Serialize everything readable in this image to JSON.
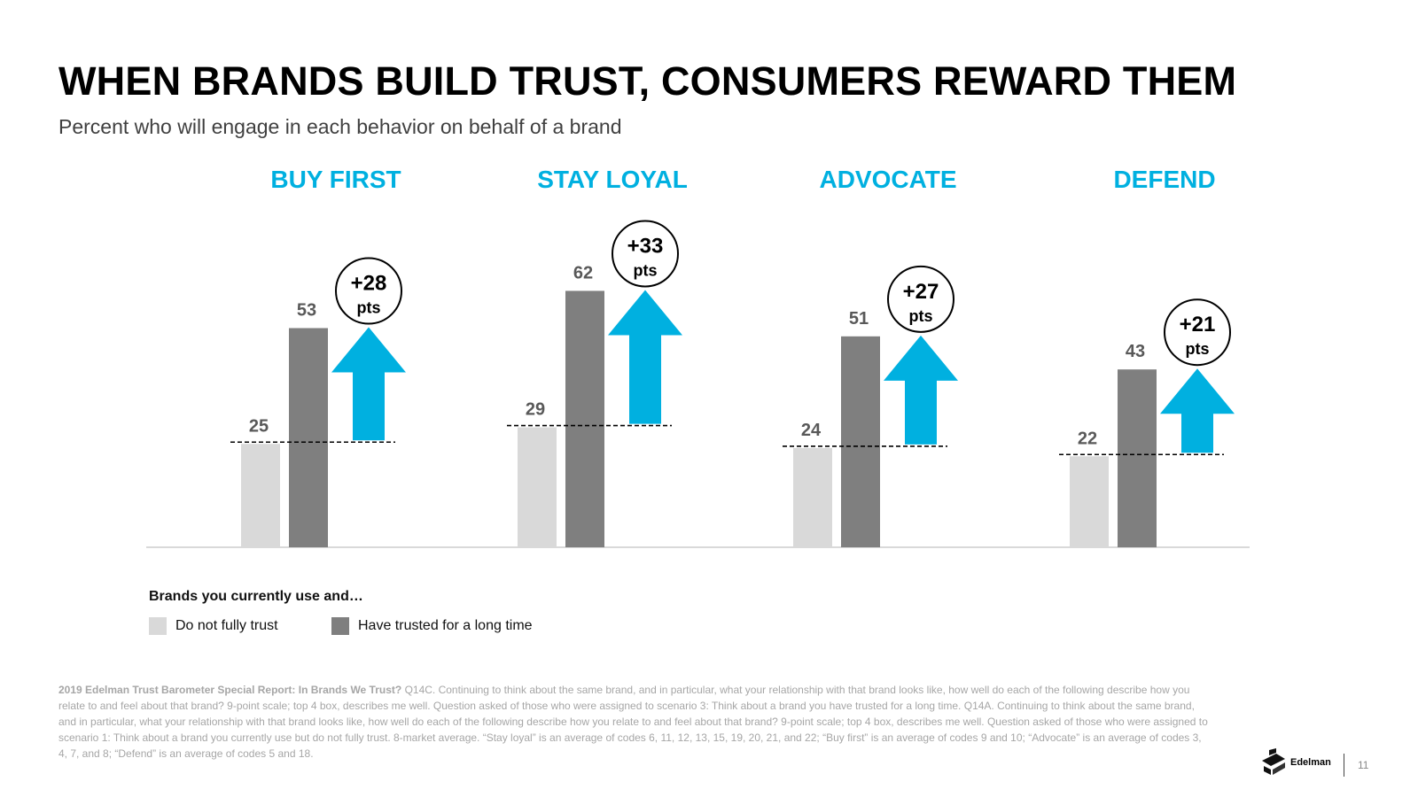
{
  "header": {
    "title": "WHEN BRANDS BUILD TRUST, CONSUMERS REWARD THEM",
    "subtitle": "Percent who will engage in each behavior on behalf of a brand"
  },
  "chart_data": {
    "type": "bar",
    "categories": [
      "BUY FIRST",
      "STAY LOYAL",
      "ADVOCATE",
      "DEFEND"
    ],
    "series": [
      {
        "name": "Do not fully trust",
        "values": [
          25,
          29,
          24,
          22
        ],
        "color": "#d9d9d9"
      },
      {
        "name": "Have trusted for a long time",
        "values": [
          53,
          62,
          51,
          43
        ],
        "color": "#7f7f7f"
      }
    ],
    "annotations": [
      {
        "value": "+28",
        "unit": "pts"
      },
      {
        "value": "+33",
        "unit": "pts"
      },
      {
        "value": "+27",
        "unit": "pts"
      },
      {
        "value": "+21",
        "unit": "pts"
      }
    ],
    "category_color": "#00b0e0",
    "arrow_color": "#00b0e0",
    "ylim": [
      0,
      65
    ],
    "grid": false,
    "legend_position": "bottom-left"
  },
  "legend": {
    "title": "Brands you currently use and…",
    "items": [
      "Do not fully trust",
      "Have trusted for a long time"
    ]
  },
  "footnote": {
    "source": "2019 Edelman Trust Barometer Special Report: In Brands We Trust?",
    "text": " Q14C. Continuing to think about the same brand, and in particular, what your relationship with that brand looks like, how well do each of the following describe how you relate to and feel about that brand? 9-point scale; top 4 box, describes me well. Question asked of those who were assigned to scenario 3: Think about a brand you have trusted for a long time. Q14A. Continuing to think about the same brand, and in particular, what your relationship with that brand looks like, how well do each of the following describe how you relate to and feel about that brand? 9-point scale; top 4 box, describes me well. Question asked of those who were assigned to scenario 1: Think about a brand you currently use but do not fully trust. 8-market average. “Stay loyal” is an average of codes 6, 11, 12, 13, 15, 19, 20, 21, and 22; “Buy first” is an average of codes 9 and 10; “Advocate” is an average of codes 3, 4, 7, and 8; “Defend” is an average of codes 5 and 18."
  },
  "footer": {
    "logo": "Edelman",
    "page": "11"
  }
}
